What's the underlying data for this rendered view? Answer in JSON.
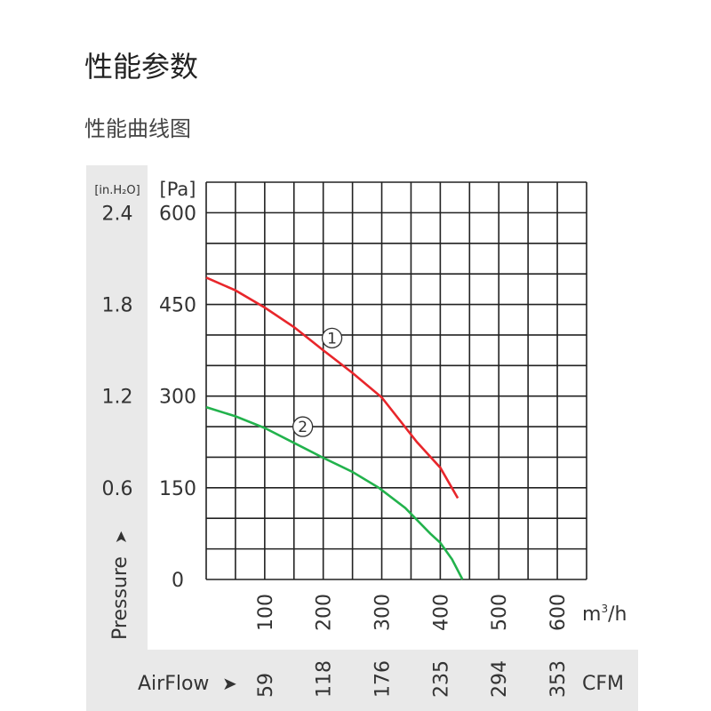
{
  "heading": "性能参数",
  "subheading": "性能曲线图",
  "chart_data": {
    "type": "line",
    "title": "",
    "xlabel": "m³/h",
    "ylabel": "Pressure",
    "ylabel_arrow": "➤",
    "y_unit_pa": "[Pa]",
    "y_unit_inh2o": "[in.H₂O]",
    "secondary_x_label": "AirFlow",
    "secondary_x_unit": "CFM",
    "xlim": [
      0,
      650
    ],
    "ylim": [
      0,
      650
    ],
    "grid": true,
    "x_ticks": [
      "100",
      "200",
      "300",
      "400",
      "500",
      "600"
    ],
    "x_tick_values": [
      100,
      200,
      300,
      400,
      500,
      600
    ],
    "cfm_ticks": [
      "59",
      "118",
      "176",
      "235",
      "294",
      "353"
    ],
    "y_ticks_pa": [
      "0",
      "150",
      "300",
      "450",
      "600"
    ],
    "y_tick_values": [
      0,
      150,
      300,
      450,
      600
    ],
    "y_ticks_inh2o": [
      "0.6",
      "1.2",
      "1.8",
      "2.4"
    ],
    "y_inh2o_values": [
      150,
      300,
      450,
      600
    ],
    "series": [
      {
        "name": "①",
        "color": "#e8262b",
        "label_at": [
          215,
          395
        ],
        "points": [
          [
            0,
            494
          ],
          [
            50,
            473
          ],
          [
            100,
            445
          ],
          [
            150,
            413
          ],
          [
            200,
            375
          ],
          [
            250,
            338
          ],
          [
            300,
            298
          ],
          [
            360,
            225
          ],
          [
            400,
            183
          ],
          [
            430,
            133
          ]
        ]
      },
      {
        "name": "②",
        "color": "#22b24c",
        "label_at": [
          165,
          250
        ],
        "points": [
          [
            0,
            282
          ],
          [
            50,
            267
          ],
          [
            100,
            248
          ],
          [
            147,
            225
          ],
          [
            200,
            199
          ],
          [
            250,
            176
          ],
          [
            295,
            150
          ],
          [
            340,
            117
          ],
          [
            383,
            75
          ],
          [
            400,
            60
          ],
          [
            420,
            33
          ],
          [
            438,
            0
          ]
        ]
      }
    ]
  }
}
